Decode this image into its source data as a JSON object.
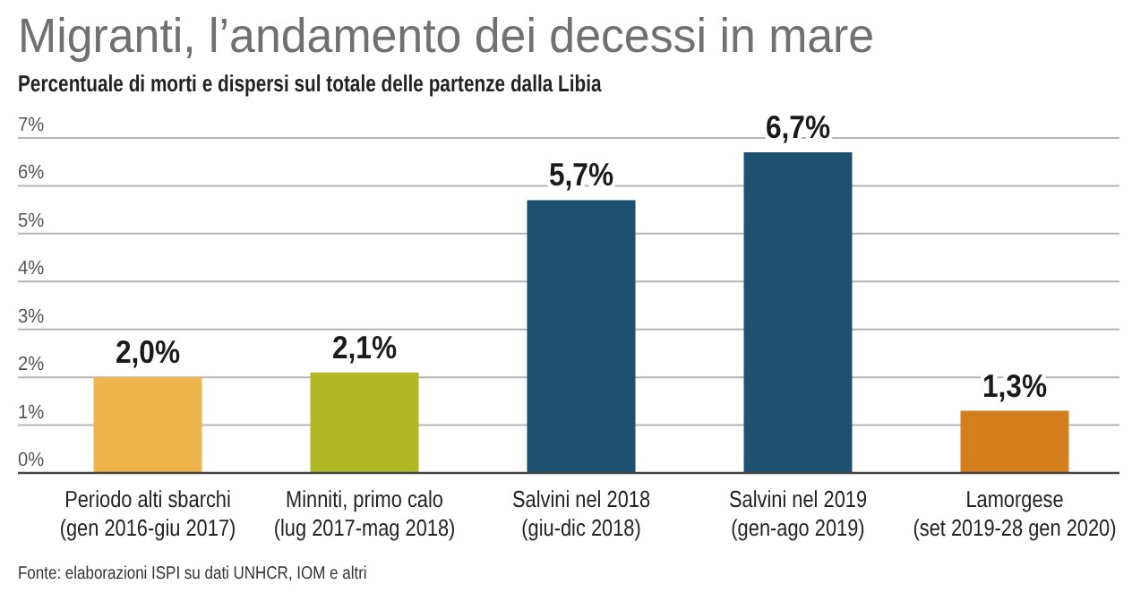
{
  "chart_data": {
    "type": "bar",
    "title": "Migranti, l’andamento dei decessi in mare",
    "subtitle": "Percentuale di morti e dispersi sul totale delle partenze dalla Libia",
    "categories": [
      "Periodo alti sbarchi\n(gen 2016-giu 2017)",
      "Minniti, primo calo\n(lug 2017-mag 2018)",
      "Salvini nel 2018\n(giu-dic 2018)",
      "Salvini nel 2019\n(gen-ago 2019)",
      "Lamorgese\n(set 2019-28 gen 2020)"
    ],
    "values": [
      2.0,
      2.1,
      5.7,
      6.7,
      1.3
    ],
    "colors": [
      "#f0b44c",
      "#b0b826",
      "#1e5170",
      "#1e5170",
      "#d47f1e"
    ],
    "value_labels": [
      "2,0%",
      "2,1%",
      "5,7%",
      "6,7%",
      "1,3%"
    ],
    "ylim": [
      0,
      7
    ],
    "yticks": [
      {
        "value": 0,
        "label": "0%"
      },
      {
        "value": 1,
        "label": "1%"
      },
      {
        "value": 2,
        "label": "2%"
      },
      {
        "value": 3,
        "label": "3%"
      },
      {
        "value": 4,
        "label": "4%"
      },
      {
        "value": 5,
        "label": "5%"
      },
      {
        "value": 6,
        "label": "6%"
      },
      {
        "value": 7,
        "label": "7%"
      }
    ],
    "grid": "y",
    "annotations": [
      "Fonte: elaborazioni ISPI su dati UNHCR, IOM e altri"
    ]
  }
}
